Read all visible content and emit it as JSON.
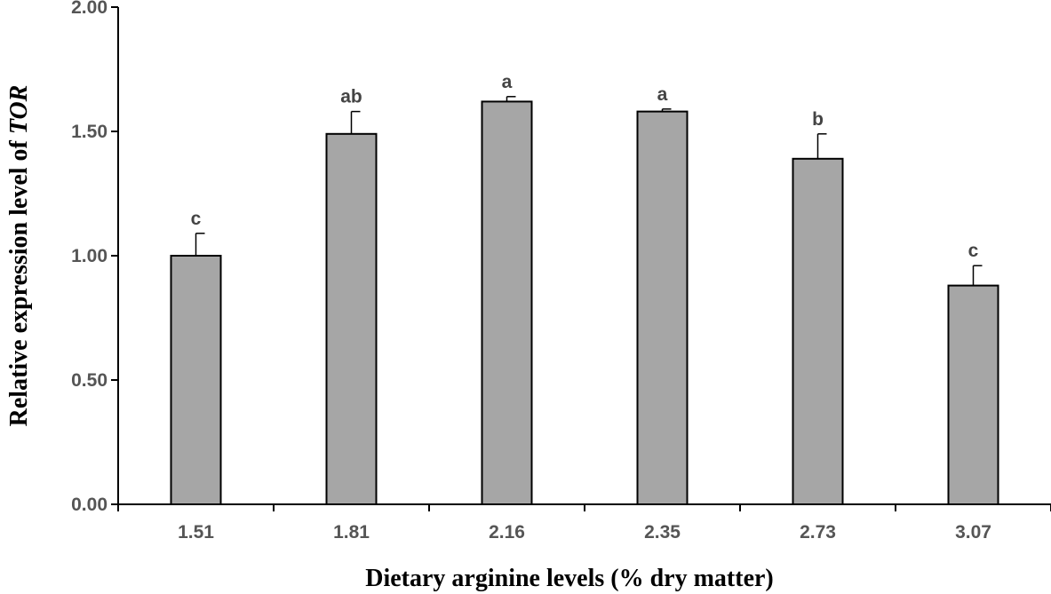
{
  "chart_data": {
    "type": "bar",
    "categories": [
      "1.51",
      "1.81",
      "2.16",
      "2.35",
      "2.73",
      "3.07"
    ],
    "values": [
      1.0,
      1.49,
      1.62,
      1.58,
      1.39,
      0.88
    ],
    "error": [
      0.09,
      0.09,
      0.02,
      0.01,
      0.1,
      0.08
    ],
    "significance_labels": [
      "c",
      "ab",
      "a",
      "a",
      "b",
      "c"
    ],
    "xlabel": "Dietary arginine levels (% dry matter)",
    "ylabel_prefix": "Relative expression level of ",
    "ylabel_italic": "TOR",
    "ylim": [
      0,
      2.0
    ],
    "yticks": [
      "0.00",
      "0.50",
      "1.00",
      "1.50",
      "2.00"
    ],
    "grid": false,
    "legend": "none",
    "bar_color": "#a6a6a6",
    "bar_edge_color": "#000000"
  }
}
